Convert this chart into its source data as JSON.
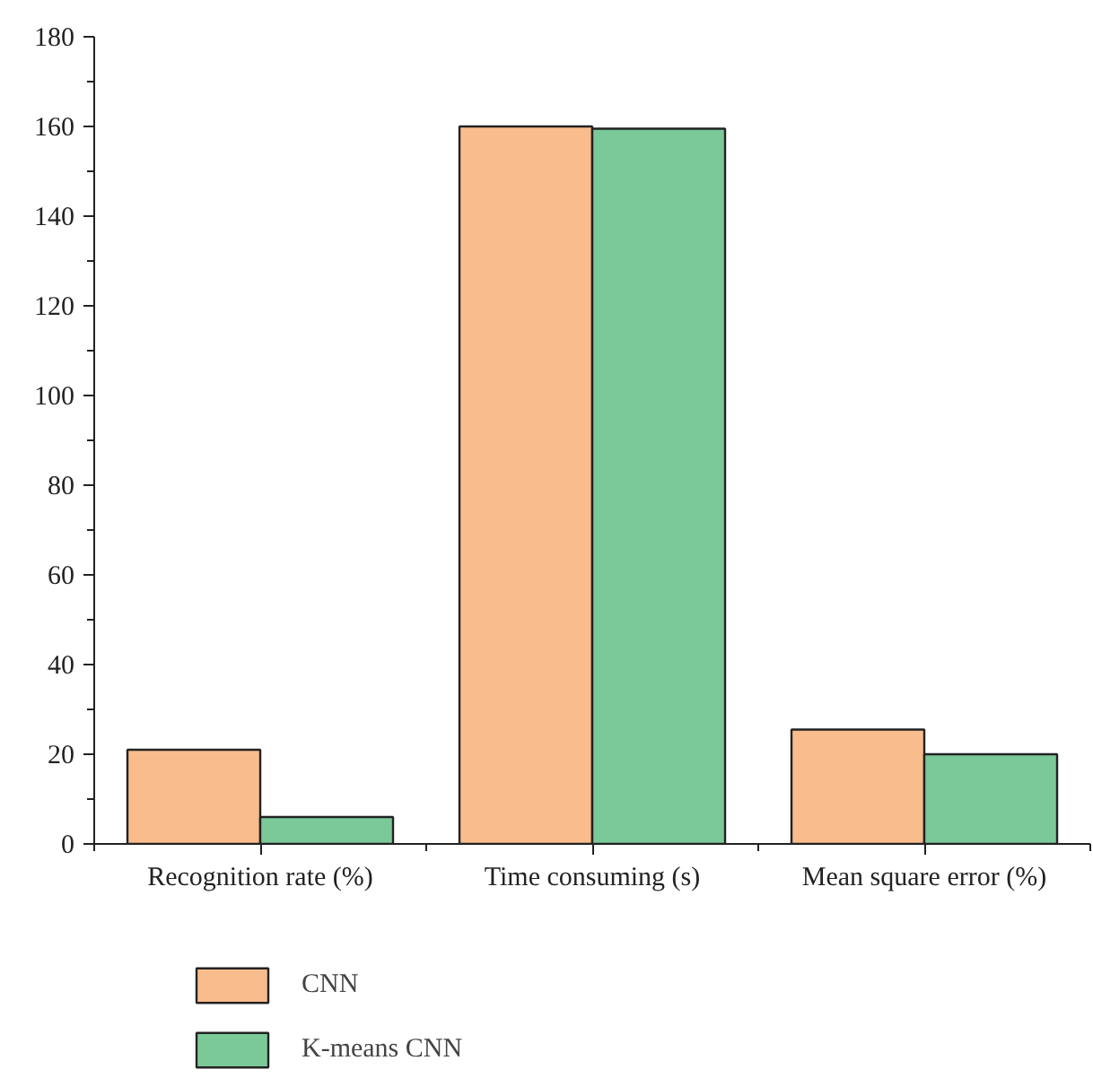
{
  "chart_data": {
    "type": "bar",
    "categories": [
      "Recognition rate (%)",
      "Time consuming (s)",
      "Mean square error (%)"
    ],
    "series": [
      {
        "name": "CNN",
        "color": "#f9bc8d",
        "values": [
          21,
          160,
          25.5
        ]
      },
      {
        "name": "K-means CNN",
        "color": "#7bc999",
        "values": [
          6,
          159.5,
          20
        ]
      }
    ],
    "ylim": [
      0,
      180
    ],
    "yticks": [
      0,
      20,
      40,
      60,
      80,
      100,
      120,
      140,
      160,
      180
    ],
    "grid": false,
    "legend": "bottom left"
  }
}
